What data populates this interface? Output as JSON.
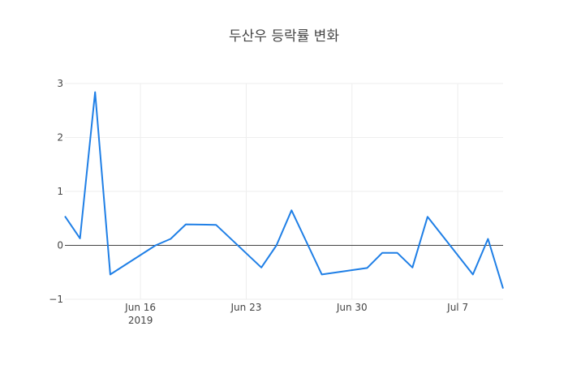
{
  "chart_data": {
    "type": "line",
    "title": "두산우 등락률 변화",
    "xlabel": "",
    "ylabel": "",
    "ylim": [
      -1,
      3
    ],
    "grid": true,
    "legend": "none",
    "x": [
      "2019-06-11",
      "2019-06-12",
      "2019-06-13",
      "2019-06-14",
      "2019-06-17",
      "2019-06-18",
      "2019-06-19",
      "2019-06-21",
      "2019-06-24",
      "2019-06-25",
      "2019-06-26",
      "2019-06-28",
      "2019-07-01",
      "2019-07-02",
      "2019-07-03",
      "2019-07-04",
      "2019-07-05",
      "2019-07-08",
      "2019-07-09",
      "2019-07-10"
    ],
    "series": [
      {
        "name": "등락률",
        "color": "#1f7fe6",
        "values": [
          0.54,
          0.13,
          2.84,
          -0.54,
          0.0,
          0.12,
          0.39,
          0.38,
          -0.41,
          0.0,
          0.65,
          -0.54,
          -0.42,
          -0.14,
          -0.14,
          -0.41,
          0.53,
          -0.54,
          0.12,
          -0.8
        ]
      }
    ],
    "x_ticks": [
      {
        "label": "Jun 16",
        "sublabel": "2019",
        "date": "2019-06-16"
      },
      {
        "label": "Jun 23",
        "sublabel": "",
        "date": "2019-06-23"
      },
      {
        "label": "Jun 30",
        "sublabel": "",
        "date": "2019-06-30"
      },
      {
        "label": "Jul 7",
        "sublabel": "",
        "date": "2019-07-07"
      }
    ],
    "y_ticks": [
      "−1",
      "0",
      "1",
      "2",
      "3"
    ]
  }
}
